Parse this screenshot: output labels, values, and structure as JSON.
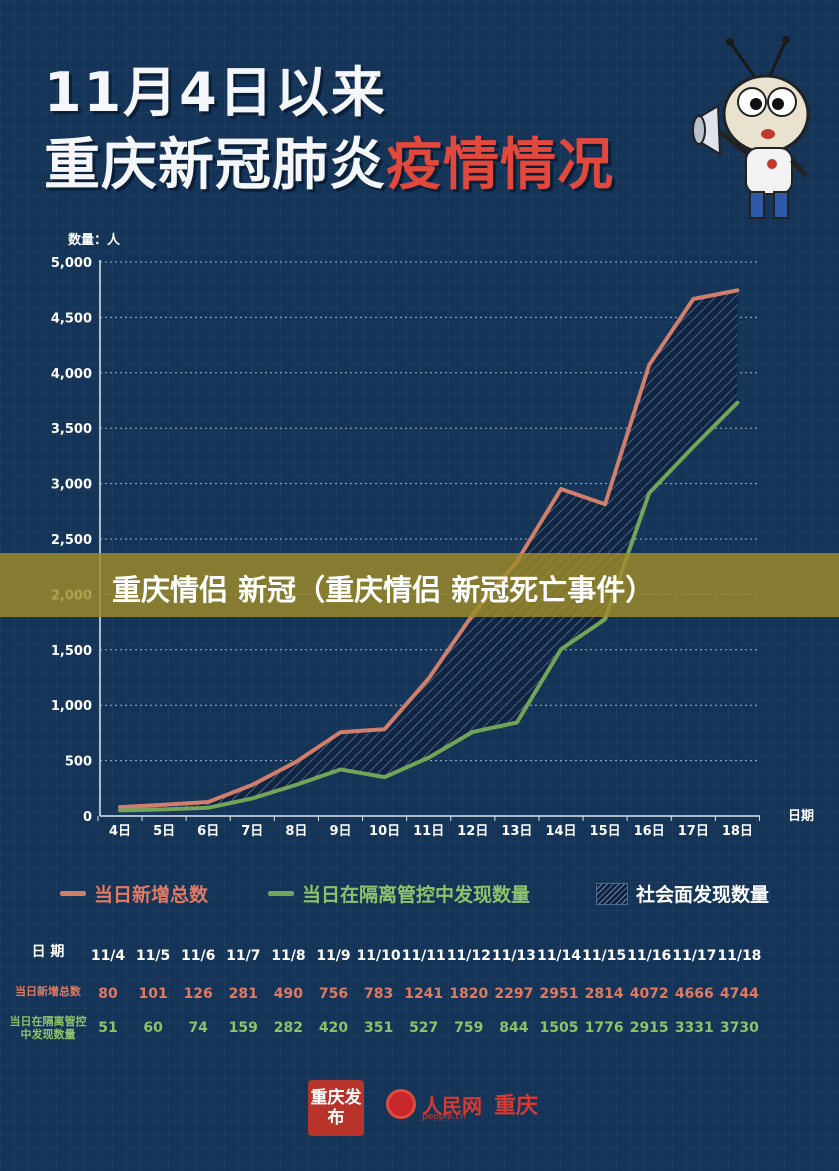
{
  "header": {
    "title_line1": "11月4日以来",
    "title_line2_white": "重庆新冠肺炎",
    "title_line2_red": "疫情情况"
  },
  "banner": {
    "text": "重庆情侣 新冠（重庆情侣 新冠死亡事件）"
  },
  "legend": {
    "items": [
      {
        "label": "当日新增总数",
        "color": "#cf7f6c",
        "type": "line"
      },
      {
        "label": "当日在隔离管控中发现数量",
        "color": "#74a458",
        "type": "line"
      },
      {
        "label": "社会面发现数量",
        "type": "hatch"
      }
    ]
  },
  "table": {
    "header_label": "日 期",
    "dates": [
      "11/4",
      "11/5",
      "11/6",
      "11/7",
      "11/8",
      "11/9",
      "11/10",
      "11/11",
      "11/12",
      "11/13",
      "11/14",
      "11/15",
      "11/16",
      "11/17",
      "11/18"
    ],
    "row1_label": "当日新增总数",
    "row1_values": [
      "80",
      "101",
      "126",
      "281",
      "490",
      "756",
      "783",
      "1241",
      "1820",
      "2297",
      "2951",
      "2814",
      "4072",
      "4666",
      "4744"
    ],
    "row2_label": "当日在隔离管控中发现数量",
    "row2_values": [
      "51",
      "60",
      "74",
      "159",
      "282",
      "420",
      "351",
      "527",
      "759",
      "844",
      "1505",
      "1776",
      "2915",
      "3331",
      "3730"
    ]
  },
  "footer": {
    "logo1_text": "重庆发布",
    "logo2_text": "人民网",
    "logo2_sub": "people.cn",
    "logo2_city": "重庆"
  },
  "chart_data": {
    "type": "line",
    "ylabel": "数量：人",
    "xlabel": "日期",
    "categories": [
      "4日",
      "5日",
      "6日",
      "7日",
      "8日",
      "9日",
      "10日",
      "11日",
      "12日",
      "13日",
      "14日",
      "15日",
      "16日",
      "17日",
      "18日"
    ],
    "yticks": [
      "0",
      "500",
      "1,000",
      "1,500",
      "2,000",
      "2,500",
      "3,000",
      "3,500",
      "4,000",
      "4,500",
      "5,000"
    ],
    "ylim": [
      0,
      5000
    ],
    "grid": true,
    "series": [
      {
        "name": "当日新增总数",
        "color": "#cf7f6c",
        "values": [
          80,
          101,
          126,
          281,
          490,
          756,
          783,
          1241,
          1820,
          2297,
          2951,
          2814,
          4072,
          4666,
          4744
        ]
      },
      {
        "name": "当日在隔离管控中发现数量",
        "color": "#74a458",
        "values": [
          51,
          60,
          74,
          159,
          282,
          420,
          351,
          527,
          759,
          844,
          1505,
          1776,
          2915,
          3331,
          3730
        ]
      }
    ],
    "shaded_between": "社会面发现数量"
  }
}
